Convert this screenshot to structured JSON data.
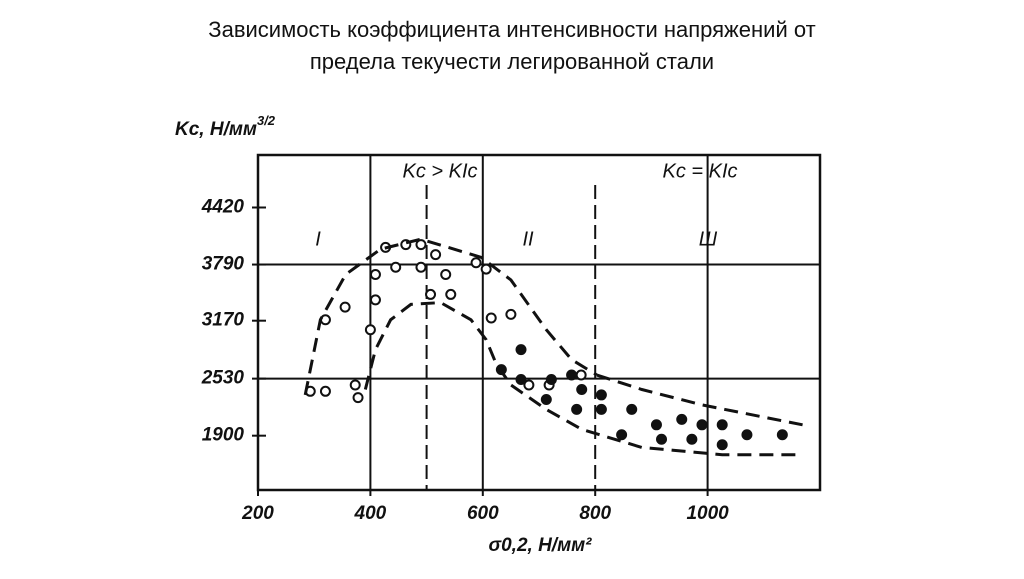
{
  "chart_data": {
    "type": "scatter",
    "title": [
      "Зависимость коэффициента интенсивности напряжений от",
      "предела текучести легированной стали"
    ],
    "y_label": "Kс, Н/мм",
    "y_label_sup": "3/2",
    "x_label": "σ0,2, Н/мм²",
    "xlim": [
      200,
      1200
    ],
    "ylim": [
      1300,
      5000
    ],
    "xticks": [
      200,
      400,
      600,
      800,
      1000
    ],
    "yticks": [
      4420,
      3790,
      3170,
      2530,
      1900
    ],
    "grid_y": [
      3790,
      2530
    ],
    "vlines": [
      {
        "x": 400,
        "style": "solid"
      },
      {
        "x": 500,
        "style": "dashed"
      },
      {
        "x": 600,
        "style": "solid"
      },
      {
        "x": 800,
        "style": "dashed"
      },
      {
        "x": 1000,
        "style": "solid"
      }
    ],
    "annotations": [
      "Kс > KIc",
      "Kс = KIc",
      "I",
      "II",
      "Ш"
    ],
    "series": [
      {
        "marker": "open",
        "color": "#111",
        "x": [
          293,
          320,
          320,
          355,
          373,
          378,
          400,
          409,
          409,
          427,
          445,
          463,
          490,
          490,
          516,
          534,
          507,
          543,
          588,
          606,
          615,
          650,
          682,
          718,
          775
        ],
        "values": [
          2390,
          2390,
          3180,
          3320,
          2460,
          2320,
          3070,
          3400,
          3680,
          3980,
          3760,
          4010,
          4010,
          3760,
          3900,
          3680,
          3460,
          3460,
          3810,
          3740,
          3200,
          3240,
          2460,
          2460,
          2570
        ]
      },
      {
        "marker": "filled",
        "color": "#111",
        "x": [
          633,
          668,
          668,
          713,
          722,
          758,
          776,
          767,
          811,
          811,
          847,
          865,
          909,
          918,
          954,
          972,
          990,
          1026,
          1026,
          1070,
          1133
        ],
        "values": [
          2630,
          2850,
          2520,
          2300,
          2520,
          2570,
          2410,
          2190,
          2190,
          2350,
          1910,
          2190,
          2020,
          1860,
          2080,
          1860,
          2020,
          2020,
          1800,
          1910,
          1910
        ]
      },
      {
        "marker": "dashed",
        "color": "#111",
        "x": [
          284,
          311,
          356,
          418,
          490,
          597,
          650,
          713,
          758,
          803
        ],
        "values": [
          2350,
          3180,
          3680,
          3960,
          4070,
          3870,
          3620,
          3070,
          2740,
          2570
        ]
      },
      {
        "marker": "dashed",
        "color": "#111",
        "x": [
          803,
          883,
          990,
          1169
        ],
        "values": [
          2570,
          2410,
          2240,
          2020
        ]
      },
      {
        "marker": "dashed",
        "color": "#111",
        "x": [
          391,
          409,
          436,
          472,
          525,
          579,
          606,
          624,
          650,
          713,
          776,
          883,
          1026,
          1169
        ],
        "values": [
          2410,
          2850,
          3180,
          3350,
          3370,
          3180,
          2960,
          2690,
          2460,
          2190,
          1970,
          1770,
          1690,
          1690
        ]
      }
    ]
  }
}
